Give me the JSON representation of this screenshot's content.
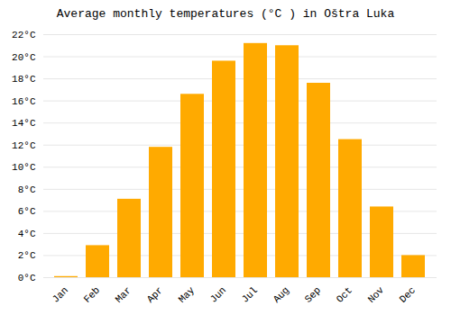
{
  "chart_data": {
    "type": "bar",
    "title": "Average monthly temperatures (°C ) in Oštra Luka",
    "categories": [
      "Jan",
      "Feb",
      "Mar",
      "Apr",
      "May",
      "Jun",
      "Jul",
      "Aug",
      "Sep",
      "Oct",
      "Nov",
      "Dec"
    ],
    "values": [
      0.1,
      2.9,
      7.1,
      11.8,
      16.6,
      19.6,
      21.2,
      21.0,
      17.6,
      12.5,
      6.4,
      2.0
    ],
    "color": "#FFAA00",
    "ylim": [
      0,
      22
    ],
    "yticks": [
      {
        "value": 0,
        "label": "0°C"
      },
      {
        "value": 2,
        "label": "2°C"
      },
      {
        "value": 4,
        "label": "4°C"
      },
      {
        "value": 6,
        "label": "6°C"
      },
      {
        "value": 8,
        "label": "8°C"
      },
      {
        "value": 10,
        "label": "10°C"
      },
      {
        "value": 12,
        "label": "12°C"
      },
      {
        "value": 14,
        "label": "14°C"
      },
      {
        "value": 16,
        "label": "16°C"
      },
      {
        "value": 18,
        "label": "18°C"
      },
      {
        "value": 20,
        "label": "20°C"
      },
      {
        "value": 22,
        "label": "22°C"
      }
    ],
    "grid": true
  }
}
